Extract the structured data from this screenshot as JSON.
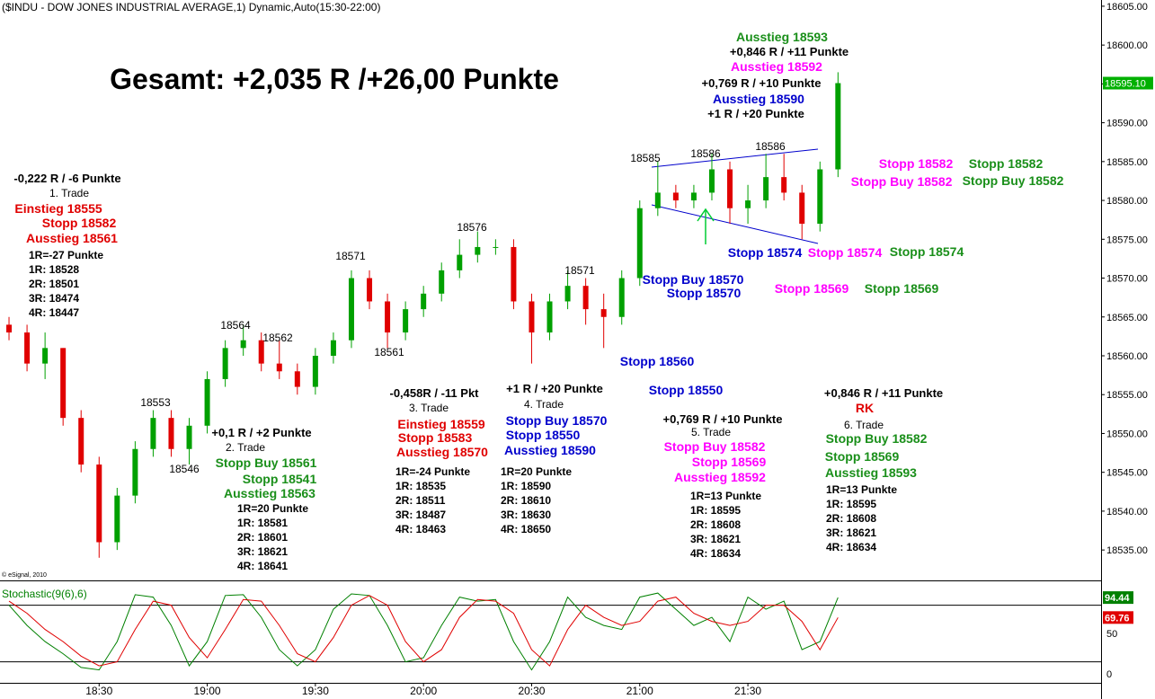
{
  "header": {
    "title": "($INDU - DOW JONES INDUSTRIAL AVERAGE,1) Dynamic,Auto(15:30-22:00)",
    "copyright": "© eSignal, 2010"
  },
  "chart_data": [
    {
      "type": "candlestick",
      "summary": "Gesamt: +2,035 R /+26,00 Punkte",
      "x": [
        "18:05",
        "18:10",
        "18:15",
        "18:20",
        "18:25",
        "18:30",
        "18:35",
        "18:40",
        "18:45",
        "18:50",
        "18:55",
        "19:00",
        "19:05",
        "19:10",
        "19:15",
        "19:20",
        "19:25",
        "19:30",
        "19:35",
        "19:40",
        "19:45",
        "19:50",
        "19:55",
        "20:00",
        "20:05",
        "20:10",
        "20:15",
        "20:20",
        "20:25",
        "20:30",
        "20:35",
        "20:40",
        "20:45",
        "20:50",
        "20:55",
        "21:00",
        "21:05",
        "21:10",
        "21:15",
        "21:20",
        "21:25",
        "21:30",
        "21:35",
        "21:40",
        "21:45",
        "21:50",
        "21:55"
      ],
      "open": [
        18564,
        18563,
        18559,
        18561,
        18552,
        18546,
        18536,
        18542,
        18548,
        18552,
        18548,
        18551,
        18557,
        18561,
        18562,
        18559,
        18558,
        18556,
        18560,
        18562,
        18570,
        18567,
        18563,
        18566,
        18568,
        18571,
        18573,
        18574,
        18574,
        18567,
        18563,
        18567,
        18569,
        18566,
        18565,
        18570,
        18579,
        18581,
        18580,
        18581,
        18584,
        18579,
        18580,
        18583,
        18581,
        18577,
        18584
      ],
      "high": [
        18565,
        18564,
        18563,
        18561,
        18553,
        18547,
        18543,
        18549,
        18553,
        18553,
        18552,
        18558,
        18562,
        18564,
        18563,
        18562,
        18559,
        18561,
        18563,
        18571,
        18571,
        18568,
        18567,
        18569,
        18572,
        18575,
        18576,
        18575,
        18575,
        18568,
        18568,
        18571,
        18570,
        18568,
        18571,
        18580,
        18585,
        18582,
        18582,
        18586,
        18585,
        18582,
        18586,
        18586,
        18582,
        18585,
        18596.5
      ],
      "low": [
        18562,
        18558,
        18557,
        18551,
        18545,
        18534,
        18535,
        18541,
        18547,
        18547,
        18546,
        18550,
        18556,
        18560,
        18558,
        18557,
        18555,
        18555,
        18559,
        18561,
        18566,
        18561,
        18562,
        18565,
        18567,
        18570,
        18572,
        18573,
        18566,
        18559,
        18562,
        18566,
        18564,
        18561,
        18564,
        18569,
        18578,
        18579,
        18579,
        18580,
        18577,
        18577,
        18579,
        18580,
        18575,
        18576,
        18583
      ],
      "close": [
        18563,
        18559,
        18561,
        18552,
        18546,
        18536,
        18542,
        18548,
        18552,
        18548,
        18551,
        18557,
        18561,
        18562,
        18559,
        18558,
        18556,
        18560,
        18562,
        18570,
        18567,
        18563,
        18566,
        18568,
        18571,
        18573,
        18574,
        18574,
        18567,
        18563,
        18567,
        18569,
        18566,
        18565,
        18570,
        18579,
        18581,
        18580,
        18581,
        18584,
        18579,
        18580,
        18583,
        18581,
        18577,
        18584,
        18595.1
      ],
      "up_color": "#00a000",
      "down_color": "#e00000",
      "ylim": [
        18531.2,
        18605.8
      ],
      "yticks": [
        {
          "value": 18605,
          "label": "18605.00"
        },
        {
          "value": 18600,
          "label": "18600.00"
        },
        {
          "value": 18595,
          "label": "18595.00"
        },
        {
          "value": 18590,
          "label": "18590.00"
        },
        {
          "value": 18585,
          "label": "18585.00"
        },
        {
          "value": 18580,
          "label": "18580.00"
        },
        {
          "value": 18575,
          "label": "18575.00"
        },
        {
          "value": 18570,
          "label": "18570.00"
        },
        {
          "value": 18565,
          "label": "18565.00"
        },
        {
          "value": 18560,
          "label": "18560.00"
        },
        {
          "value": 18555,
          "label": "18555.00"
        },
        {
          "value": 18550,
          "label": "18550.00"
        },
        {
          "value": 18545,
          "label": "18545.00"
        },
        {
          "value": 18540,
          "label": "18540.00"
        },
        {
          "value": 18535,
          "label": "18535.00"
        }
      ],
      "xticks": [
        "18:30",
        "19:00",
        "19:30",
        "20:00",
        "20:30",
        "21:00",
        "21:30"
      ],
      "last_price": {
        "value": 18595.1,
        "label": "18595.10"
      },
      "annotations": [
        "-0,222 R / -6 Punkte",
        "1. Trade",
        "Einstieg 18555",
        "Stopp 18582",
        "Ausstieg 18561",
        "1R=-27 Punkte",
        "1R: 18528",
        "2R: 18501",
        "3R: 18474",
        "4R: 18447",
        "+0,1 R / +2 Punkte",
        "2. Trade",
        "Stopp Buy 18561",
        "Stopp 18541",
        "Ausstieg 18563",
        "1R=20 Punkte",
        "1R: 18581",
        "2R: 18601",
        "3R: 18621",
        "4R: 18641",
        "-0,458R / -11 Pkt",
        "3. Trade",
        "Einstieg 18559",
        "Stopp 18583",
        "Ausstieg 18570",
        "1R=-24 Punkte",
        "1R: 18535",
        "2R: 18511",
        "3R: 18487",
        "4R: 18463",
        "+1 R / +20 Punkte",
        "4. Trade",
        "Stopp Buy 18570",
        "Stopp 18550",
        "Ausstieg 18590",
        "1R=20 Punkte",
        "1R: 18590",
        "2R: 18610",
        "3R: 18630",
        "4R: 18650",
        "+0,769 R / +10 Punkte",
        "5. Trade",
        "Stopp Buy 18582",
        "Stopp 18569",
        "Ausstieg 18592",
        "1R=13 Punkte",
        "1R: 18595",
        "2R: 18608",
        "3R: 18621",
        "4R: 18634",
        "+0,846 R / +11 Punkte",
        "RK",
        "6. Trade",
        "Stopp Buy 18582",
        "Stopp 18569",
        "Ausstieg 18593",
        "1R=13 Punkte",
        "1R: 18595",
        "2R: 18608",
        "3R: 18621",
        "4R: 18634",
        "Ausstieg 18593",
        "+0,846 R / +11 Punkte",
        "Ausstieg 18592",
        "+0,769 R / +10 Punkte",
        "Ausstieg 18590",
        "+1 R / +20 Punkte",
        "Stopp 18582",
        "Stopp 18582",
        "Stopp Buy 18582",
        "Stopp Buy 18582",
        "Stopp 18574",
        "Stopp 18574",
        "Stopp 18574",
        "Stopp Buy 18570",
        "Stopp 18570",
        "Stopp 18569",
        "Stopp 18569",
        "Stopp 18560",
        "Stopp 18550",
        "18585",
        "18586",
        "18586",
        "18576",
        "18571",
        "18571",
        "18564",
        "18562",
        "18561",
        "18553",
        "18546"
      ]
    },
    {
      "type": "line",
      "title": "Stochastic(9(6),6)",
      "series": [
        {
          "color": "#008000",
          "values": [
            85,
            60,
            40,
            25,
            8,
            5,
            40,
            98,
            95,
            60,
            10,
            40,
            97,
            98,
            70,
            30,
            10,
            30,
            80,
            99,
            97,
            60,
            15,
            20,
            60,
            95,
            90,
            92,
            40,
            5,
            40,
            95,
            70,
            60,
            55,
            95,
            100,
            80,
            60,
            70,
            40,
            95,
            80,
            90,
            30,
            40,
            94.44
          ]
        },
        {
          "color": "#e00000",
          "values": [
            90,
            75,
            55,
            40,
            22,
            10,
            15,
            55,
            90,
            85,
            45,
            20,
            55,
            92,
            90,
            60,
            25,
            15,
            45,
            85,
            97,
            85,
            40,
            15,
            30,
            70,
            92,
            90,
            75,
            30,
            10,
            55,
            85,
            70,
            60,
            65,
            90,
            95,
            75,
            65,
            60,
            65,
            85,
            85,
            65,
            30,
            69.76
          ]
        }
      ],
      "ylim": [
        -11,
        109
      ],
      "yticks": [
        50,
        0
      ],
      "levels": [
        85,
        15
      ]
    }
  ]
}
